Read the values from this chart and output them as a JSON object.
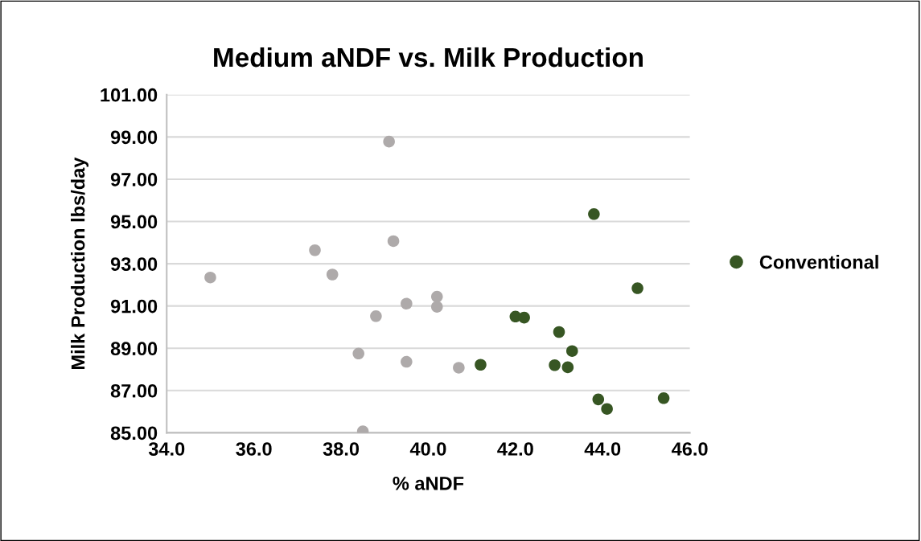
{
  "chart_data": {
    "type": "scatter",
    "title": "Medium aNDF vs. Milk Production",
    "xlabel": "% aNDF",
    "ylabel": "Milk Production lbs/day",
    "xlim": [
      34,
      46
    ],
    "ylim": [
      85,
      101
    ],
    "xticks": [
      {
        "value": 34,
        "label": "34.0"
      },
      {
        "value": 36,
        "label": "36.0"
      },
      {
        "value": 38,
        "label": "38.0"
      },
      {
        "value": 40,
        "label": "40.0"
      },
      {
        "value": 42,
        "label": "42.0"
      },
      {
        "value": 44,
        "label": "44.0"
      },
      {
        "value": 46,
        "label": "46.0"
      }
    ],
    "yticks": [
      {
        "value": 85,
        "label": "85.00"
      },
      {
        "value": 87,
        "label": "87.00"
      },
      {
        "value": 89,
        "label": "89.00"
      },
      {
        "value": 91,
        "label": "91.00"
      },
      {
        "value": 93,
        "label": "93.00"
      },
      {
        "value": 95,
        "label": "95.00"
      },
      {
        "value": 97,
        "label": "97.00"
      },
      {
        "value": 99,
        "label": "99.00"
      },
      {
        "value": 101,
        "label": "101.00"
      }
    ],
    "grid": "y",
    "legend": "right",
    "marker": "circle",
    "series": [
      {
        "color": "#aeaaaa",
        "x": [
          39.1,
          39.2,
          37.4,
          35.0,
          37.8,
          40.2,
          40.2,
          39.5,
          38.8,
          38.4,
          39.5,
          38.5,
          40.7
        ],
        "values": [
          98.78,
          94.07,
          93.64,
          92.35,
          92.49,
          91.44,
          90.96,
          91.11,
          90.52,
          88.75,
          88.36,
          85.07,
          88.08
        ]
      },
      {
        "name": "Conventional",
        "color": "#375623",
        "x": [
          43.8,
          44.8,
          42.0,
          42.2,
          43.0,
          43.3,
          41.2,
          42.9,
          43.2,
          43.9,
          44.1,
          45.4
        ],
        "values": [
          95.35,
          91.84,
          90.5,
          90.45,
          89.77,
          88.87,
          88.22,
          88.2,
          88.1,
          86.58,
          86.13,
          86.64
        ]
      }
    ]
  }
}
